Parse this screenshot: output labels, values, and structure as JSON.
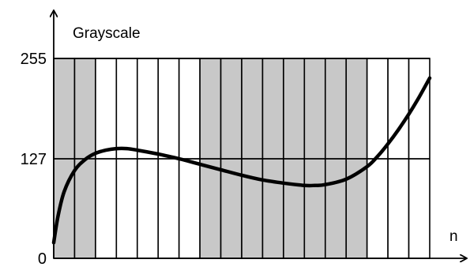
{
  "chart_data": {
    "type": "line",
    "title": "",
    "ylabel": "Grayscale",
    "xlabel": "n",
    "ylim": [
      0,
      255
    ],
    "yticks": [
      {
        "value": 0,
        "label": "0"
      },
      {
        "value": 127,
        "label": "127"
      },
      {
        "value": 255,
        "label": "255"
      }
    ],
    "reference_lines": [
      127,
      255
    ],
    "grid": true,
    "bins": 18,
    "bin_states": [
      1,
      1,
      0,
      0,
      0,
      0,
      0,
      1,
      1,
      1,
      1,
      1,
      1,
      1,
      1,
      0,
      0,
      0
    ],
    "bin_state_meaning": {
      "1": "shaded",
      "0": "white"
    },
    "series": [
      {
        "x": [
          0,
          0.2,
          0.5,
          1,
          1.5,
          2,
          2.5,
          3,
          3.5,
          4,
          5,
          6,
          7,
          8,
          9,
          10,
          11,
          12,
          12.5,
          13,
          14,
          15,
          15.5,
          16,
          16.5,
          17,
          17.5,
          18
        ],
        "values": [
          20,
          53,
          85,
          112,
          126,
          134,
          138,
          140,
          140,
          138,
          133,
          127,
          120,
          113,
          106,
          100,
          96,
          93,
          93,
          94,
          101,
          117,
          130,
          146,
          164,
          184,
          206,
          230
        ]
      }
    ],
    "colors": {
      "shaded": "#c8c8c8",
      "line": "#000000",
      "axis": "#000000"
    }
  }
}
